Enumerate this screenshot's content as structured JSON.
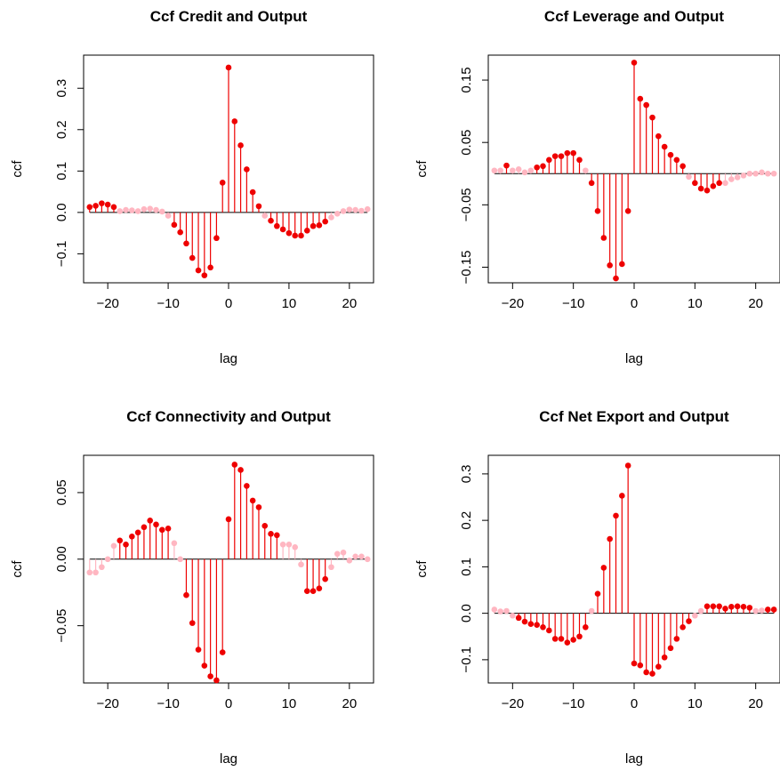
{
  "chart_data": [
    {
      "type": "stem",
      "title": "Ccf Credit and Output",
      "xlabel": "lag",
      "ylabel": "ccf",
      "xlim": [
        -24,
        24
      ],
      "ylim": [
        -0.17,
        0.38
      ],
      "xticks": [
        "−20",
        "−10",
        "0",
        "10",
        "20"
      ],
      "xtick_values": [
        -20,
        -10,
        0,
        10,
        20
      ],
      "yticks": [
        "−0.1",
        "0.0",
        "0.1",
        "0.2",
        "0.3"
      ],
      "ytick_values": [
        -0.1,
        0.0,
        0.1,
        0.2,
        0.3
      ],
      "grid": false,
      "colors": {
        "strong": "#ee0000",
        "weak": "#ffb6c1"
      },
      "lags": [
        -23,
        -22,
        -21,
        -20,
        -19,
        -18,
        -17,
        -16,
        -15,
        -14,
        -13,
        -12,
        -11,
        -10,
        -9,
        -8,
        -7,
        -6,
        -5,
        -4,
        -3,
        -2,
        -1,
        0,
        1,
        2,
        3,
        4,
        5,
        6,
        7,
        8,
        9,
        10,
        11,
        12,
        13,
        14,
        15,
        16,
        17,
        18,
        19,
        20,
        21,
        22,
        23
      ],
      "values": [
        0.013,
        0.016,
        0.022,
        0.019,
        0.013,
        0.003,
        0.006,
        0.005,
        0.003,
        0.008,
        0.009,
        0.006,
        0.002,
        -0.008,
        -0.03,
        -0.048,
        -0.075,
        -0.11,
        -0.14,
        -0.152,
        -0.133,
        -0.062,
        0.072,
        0.35,
        0.22,
        0.162,
        0.104,
        0.049,
        0.015,
        -0.008,
        -0.02,
        -0.033,
        -0.041,
        -0.05,
        -0.056,
        -0.056,
        -0.044,
        -0.033,
        -0.031,
        -0.022,
        -0.012,
        -0.003,
        0.003,
        0.007,
        0.006,
        0.004,
        0.008
      ],
      "strong": [
        1,
        1,
        1,
        1,
        1,
        0,
        0,
        0,
        0,
        0,
        0,
        0,
        0,
        0,
        1,
        1,
        1,
        1,
        1,
        1,
        1,
        1,
        1,
        1,
        1,
        1,
        1,
        1,
        1,
        0,
        1,
        1,
        1,
        1,
        1,
        1,
        1,
        1,
        1,
        1,
        0,
        0,
        0,
        0,
        0,
        0,
        0
      ]
    },
    {
      "type": "stem",
      "title": "Ccf Leverage and Output",
      "xlabel": "lag",
      "ylabel": "ccf",
      "xlim": [
        -24,
        24
      ],
      "ylim": [
        -0.175,
        0.19
      ],
      "xticks": [
        "−20",
        "−10",
        "0",
        "10",
        "20"
      ],
      "xtick_values": [
        -20,
        -10,
        0,
        10,
        20
      ],
      "yticks": [
        "−0.15",
        "−0.05",
        "0.05",
        "0.15"
      ],
      "ytick_values": [
        -0.15,
        -0.05,
        0.05,
        0.15
      ],
      "grid": false,
      "colors": {
        "strong": "#ee0000",
        "weak": "#ffb6c1"
      },
      "lags": [
        -23,
        -22,
        -21,
        -20,
        -19,
        -18,
        -17,
        -16,
        -15,
        -14,
        -13,
        -12,
        -11,
        -10,
        -9,
        -8,
        -7,
        -6,
        -5,
        -4,
        -3,
        -2,
        -1,
        0,
        1,
        2,
        3,
        4,
        5,
        6,
        7,
        8,
        9,
        10,
        11,
        12,
        13,
        14,
        15,
        16,
        17,
        18,
        19,
        20,
        21,
        22,
        23
      ],
      "values": [
        0.005,
        0.005,
        0.013,
        0.005,
        0.007,
        0.002,
        0.005,
        0.01,
        0.012,
        0.022,
        0.028,
        0.028,
        0.033,
        0.033,
        0.022,
        0.005,
        -0.015,
        -0.06,
        -0.103,
        -0.147,
        -0.168,
        -0.145,
        -0.06,
        0.178,
        0.12,
        0.11,
        0.09,
        0.06,
        0.043,
        0.03,
        0.022,
        0.012,
        -0.005,
        -0.015,
        -0.024,
        -0.027,
        -0.02,
        -0.015,
        -0.015,
        -0.009,
        -0.006,
        -0.003,
        0.0,
        0.0,
        0.002,
        0.0,
        0.0
      ],
      "strong": [
        0,
        0,
        1,
        0,
        0,
        0,
        0,
        1,
        1,
        1,
        1,
        1,
        1,
        1,
        1,
        0,
        1,
        1,
        1,
        1,
        1,
        1,
        1,
        1,
        1,
        1,
        1,
        1,
        1,
        1,
        1,
        1,
        0,
        1,
        1,
        1,
        1,
        1,
        0,
        0,
        0,
        0,
        0,
        0,
        0,
        0,
        0
      ]
    },
    {
      "type": "stem",
      "title": "Ccf Connectivity and Output",
      "xlabel": "lag",
      "ylabel": "ccf",
      "xlim": [
        -24,
        24
      ],
      "ylim": [
        -0.093,
        0.078
      ],
      "xticks": [
        "−20",
        "−10",
        "0",
        "10",
        "20"
      ],
      "xtick_values": [
        -20,
        -10,
        0,
        10,
        20
      ],
      "yticks": [
        "−0.05",
        "0.00",
        "0.05"
      ],
      "ytick_values": [
        -0.05,
        0.0,
        0.05
      ],
      "grid": false,
      "colors": {
        "strong": "#ee0000",
        "weak": "#ffb6c1"
      },
      "lags": [
        -23,
        -22,
        -21,
        -20,
        -19,
        -18,
        -17,
        -16,
        -15,
        -14,
        -13,
        -12,
        -11,
        -10,
        -9,
        -8,
        -7,
        -6,
        -5,
        -4,
        -3,
        -2,
        -1,
        0,
        1,
        2,
        3,
        4,
        5,
        6,
        7,
        8,
        9,
        10,
        11,
        12,
        13,
        14,
        15,
        16,
        17,
        18,
        19,
        20,
        21,
        22,
        23
      ],
      "values": [
        -0.01,
        -0.01,
        -0.006,
        0.0,
        0.01,
        0.014,
        0.011,
        0.017,
        0.02,
        0.024,
        0.029,
        0.026,
        0.022,
        0.023,
        0.012,
        0.0,
        -0.027,
        -0.048,
        -0.068,
        -0.08,
        -0.088,
        -0.091,
        -0.07,
        0.03,
        0.071,
        0.067,
        0.055,
        0.044,
        0.039,
        0.025,
        0.019,
        0.018,
        0.011,
        0.011,
        0.009,
        -0.004,
        -0.024,
        -0.024,
        -0.022,
        -0.015,
        -0.006,
        0.004,
        0.005,
        -0.001,
        0.002,
        0.002,
        0.0
      ],
      "strong": [
        0,
        0,
        0,
        0,
        0,
        1,
        1,
        1,
        1,
        1,
        1,
        1,
        1,
        1,
        0,
        0,
        1,
        1,
        1,
        1,
        1,
        1,
        1,
        1,
        1,
        1,
        1,
        1,
        1,
        1,
        1,
        1,
        0,
        0,
        0,
        0,
        1,
        1,
        1,
        1,
        0,
        0,
        0,
        0,
        0,
        0,
        0
      ]
    },
    {
      "type": "stem",
      "title": "Ccf  Net Export and Output",
      "xlabel": "lag",
      "ylabel": "ccf",
      "xlim": [
        -24,
        24
      ],
      "ylim": [
        -0.15,
        0.34
      ],
      "xticks": [
        "−20",
        "−10",
        "0",
        "10",
        "20"
      ],
      "xtick_values": [
        -20,
        -10,
        0,
        10,
        20
      ],
      "yticks": [
        "−0.1",
        "0.0",
        "0.1",
        "0.2",
        "0.3"
      ],
      "ytick_values": [
        -0.1,
        0.0,
        0.1,
        0.2,
        0.3
      ],
      "grid": false,
      "colors": {
        "strong": "#ee0000",
        "weak": "#ffb6c1"
      },
      "lags": [
        -23,
        -22,
        -21,
        -20,
        -19,
        -18,
        -17,
        -16,
        -15,
        -14,
        -13,
        -12,
        -11,
        -10,
        -9,
        -8,
        -7,
        -6,
        -5,
        -4,
        -3,
        -2,
        -1,
        0,
        1,
        2,
        3,
        4,
        5,
        6,
        7,
        8,
        9,
        10,
        11,
        12,
        13,
        14,
        15,
        16,
        17,
        18,
        19,
        20,
        21,
        22,
        23
      ],
      "values": [
        0.008,
        0.004,
        0.005,
        -0.005,
        -0.01,
        -0.018,
        -0.023,
        -0.025,
        -0.03,
        -0.037,
        -0.055,
        -0.055,
        -0.063,
        -0.057,
        -0.05,
        -0.03,
        0.005,
        0.042,
        0.098,
        0.16,
        0.21,
        0.253,
        0.318,
        -0.108,
        -0.112,
        -0.127,
        -0.13,
        -0.115,
        -0.095,
        -0.075,
        -0.055,
        -0.03,
        -0.017,
        -0.005,
        0.005,
        0.015,
        0.015,
        0.015,
        0.01,
        0.014,
        0.015,
        0.014,
        0.012,
        0.005,
        0.006,
        0.008,
        0.008
      ],
      "strong": [
        0,
        0,
        0,
        0,
        1,
        1,
        1,
        1,
        1,
        1,
        1,
        1,
        1,
        1,
        1,
        1,
        0,
        1,
        1,
        1,
        1,
        1,
        1,
        1,
        1,
        1,
        1,
        1,
        1,
        1,
        1,
        1,
        1,
        0,
        0,
        1,
        1,
        1,
        1,
        1,
        1,
        1,
        1,
        0,
        0,
        1,
        1
      ]
    }
  ]
}
